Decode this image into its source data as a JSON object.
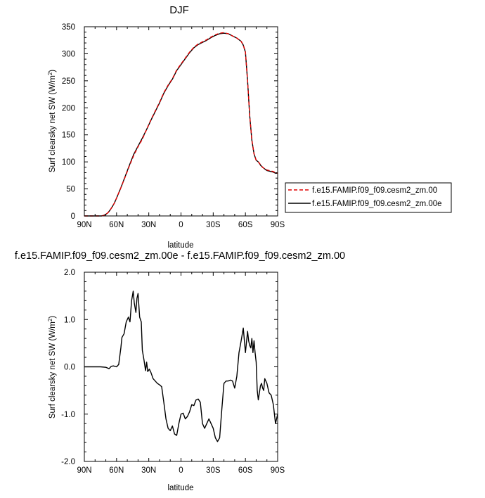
{
  "chart_data": [
    {
      "type": "line",
      "title": "DJF",
      "xlabel": "latitude",
      "ylabel": "Surf clearsky net SW (W/m²)",
      "xlim": [
        -90,
        90
      ],
      "ylim": [
        0,
        350
      ],
      "x_tick_values": [
        -90,
        -60,
        -30,
        0,
        30,
        60,
        90
      ],
      "x_tick_labels": [
        "90N",
        "60N",
        "30N",
        "0",
        "30S",
        "60S",
        "90S"
      ],
      "y_tick_values": [
        0,
        50,
        100,
        150,
        200,
        250,
        300,
        350
      ],
      "y_tick_labels": [
        "0",
        "50",
        "100",
        "150",
        "200",
        "250",
        "300",
        "350"
      ],
      "legend_position": "right",
      "x": [
        -90,
        -80,
        -74,
        -72,
        -70,
        -68,
        -66,
        -64,
        -62,
        -60,
        -56,
        -52,
        -48,
        -44,
        -40,
        -36,
        -32,
        -28,
        -24,
        -20,
        -16,
        -12,
        -8,
        -4,
        0,
        4,
        8,
        12,
        16,
        20,
        24,
        28,
        32,
        36,
        40,
        44,
        48,
        52,
        56,
        58,
        60,
        62,
        64,
        66,
        68,
        70,
        72,
        74,
        76,
        78,
        80,
        82,
        84,
        86,
        88,
        90
      ],
      "series": [
        {
          "name": "f.e15.FAMIP.f09_f09.cesm2_zm.00",
          "color": "#e00000",
          "dash": true,
          "values": [
            0,
            0,
            0,
            1,
            3,
            6,
            11,
            17,
            24,
            33,
            52,
            72,
            93,
            112,
            128,
            142,
            160,
            178,
            194,
            210,
            228,
            242,
            254,
            270,
            281,
            292,
            303,
            312,
            318,
            322,
            326,
            331,
            335,
            338,
            339,
            337,
            333,
            329,
            323,
            316,
            303,
            250,
            185,
            140,
            115,
            103,
            100,
            95,
            90,
            87,
            85,
            84,
            83,
            82,
            80,
            79
          ]
        },
        {
          "name": "f.e15.FAMIP.f09_f09.cesm2_zm.00e",
          "color": "#000000",
          "dash": false,
          "values": [
            0,
            0,
            0,
            1,
            3,
            6,
            11,
            17,
            24,
            33,
            52,
            73,
            94,
            114,
            129,
            144,
            160,
            177,
            193,
            209,
            227,
            241,
            253,
            269,
            280,
            291,
            302,
            311,
            317,
            321,
            325,
            330,
            334,
            337,
            338,
            337,
            333,
            329,
            323,
            316,
            303,
            250,
            185,
            140,
            115,
            103,
            100,
            94,
            90,
            87,
            84,
            83,
            82,
            81,
            79,
            79
          ]
        }
      ]
    },
    {
      "type": "line",
      "title": "f.e15.FAMIP.f09_f09.cesm2_zm.00e - f.e15.FAMIP.f09_f09.cesm2_zm.00",
      "xlabel": "latitude",
      "ylabel": "Surf clearsky net SW (W/m²)",
      "xlim": [
        -90,
        90
      ],
      "ylim": [
        -2.0,
        2.0
      ],
      "x_tick_values": [
        -90,
        -60,
        -30,
        0,
        30,
        60,
        90
      ],
      "x_tick_labels": [
        "90N",
        "60N",
        "30N",
        "0",
        "30S",
        "60S",
        "90S"
      ],
      "y_tick_values": [
        -2.0,
        -1.0,
        0.0,
        1.0,
        2.0
      ],
      "y_tick_labels": [
        "-2.0",
        "-1.0",
        "0.0",
        "1.0",
        "2.0"
      ],
      "series": [
        {
          "name": "",
          "color": "#000000",
          "dash": false,
          "x": [
            -90,
            -75,
            -70,
            -67,
            -65,
            -63,
            -60,
            -58,
            -56,
            -55,
            -53,
            -51,
            -49,
            -47.5,
            -46,
            -44.5,
            -43.5,
            -42,
            -41,
            -40,
            -38.5,
            -37,
            -36,
            -34.5,
            -33,
            -32,
            -31,
            -29.5,
            -28,
            -26,
            -24,
            -22,
            -20,
            -18,
            -16,
            -14,
            -12,
            -10,
            -8,
            -6,
            -4,
            -2,
            0,
            2,
            4,
            6,
            8,
            10,
            12,
            14,
            16,
            18,
            20,
            22,
            24,
            26,
            28,
            30,
            32,
            34,
            36,
            38,
            40,
            42,
            44,
            46,
            48,
            50,
            52,
            54,
            56,
            58,
            60,
            62,
            63,
            64,
            65,
            66,
            67,
            68,
            69,
            70,
            71,
            72,
            73,
            74,
            75,
            76,
            77,
            78,
            80,
            82,
            84,
            86,
            88,
            90
          ],
          "values": [
            0,
            0,
            -0.01,
            -0.04,
            0.01,
            0.02,
            0.0,
            0.05,
            0.4,
            0.62,
            0.7,
            0.95,
            1.05,
            0.95,
            1.4,
            1.6,
            1.35,
            1.15,
            1.45,
            1.55,
            1.05,
            0.95,
            0.35,
            0.15,
            -0.08,
            0.1,
            -0.1,
            -0.05,
            -0.12,
            -0.25,
            -0.3,
            -0.35,
            -0.38,
            -0.42,
            -0.75,
            -1.1,
            -1.3,
            -1.35,
            -1.25,
            -1.42,
            -1.45,
            -1.2,
            -1.0,
            -0.98,
            -1.1,
            -1.05,
            -0.95,
            -0.8,
            -0.82,
            -0.7,
            -0.68,
            -0.75,
            -1.2,
            -1.3,
            -1.2,
            -1.1,
            -1.2,
            -1.3,
            -1.5,
            -1.58,
            -1.5,
            -0.9,
            -0.35,
            -0.3,
            -0.3,
            -0.28,
            -0.3,
            -0.45,
            -0.2,
            0.3,
            0.55,
            0.82,
            0.3,
            0.75,
            0.55,
            0.45,
            0.4,
            0.6,
            0.3,
            0.55,
            0.3,
            0.1,
            -0.5,
            -0.7,
            -0.55,
            -0.4,
            -0.35,
            -0.45,
            -0.5,
            -0.25,
            -0.35,
            -0.55,
            -0.6,
            -0.8,
            -1.2,
            -1.0
          ]
        }
      ]
    }
  ]
}
